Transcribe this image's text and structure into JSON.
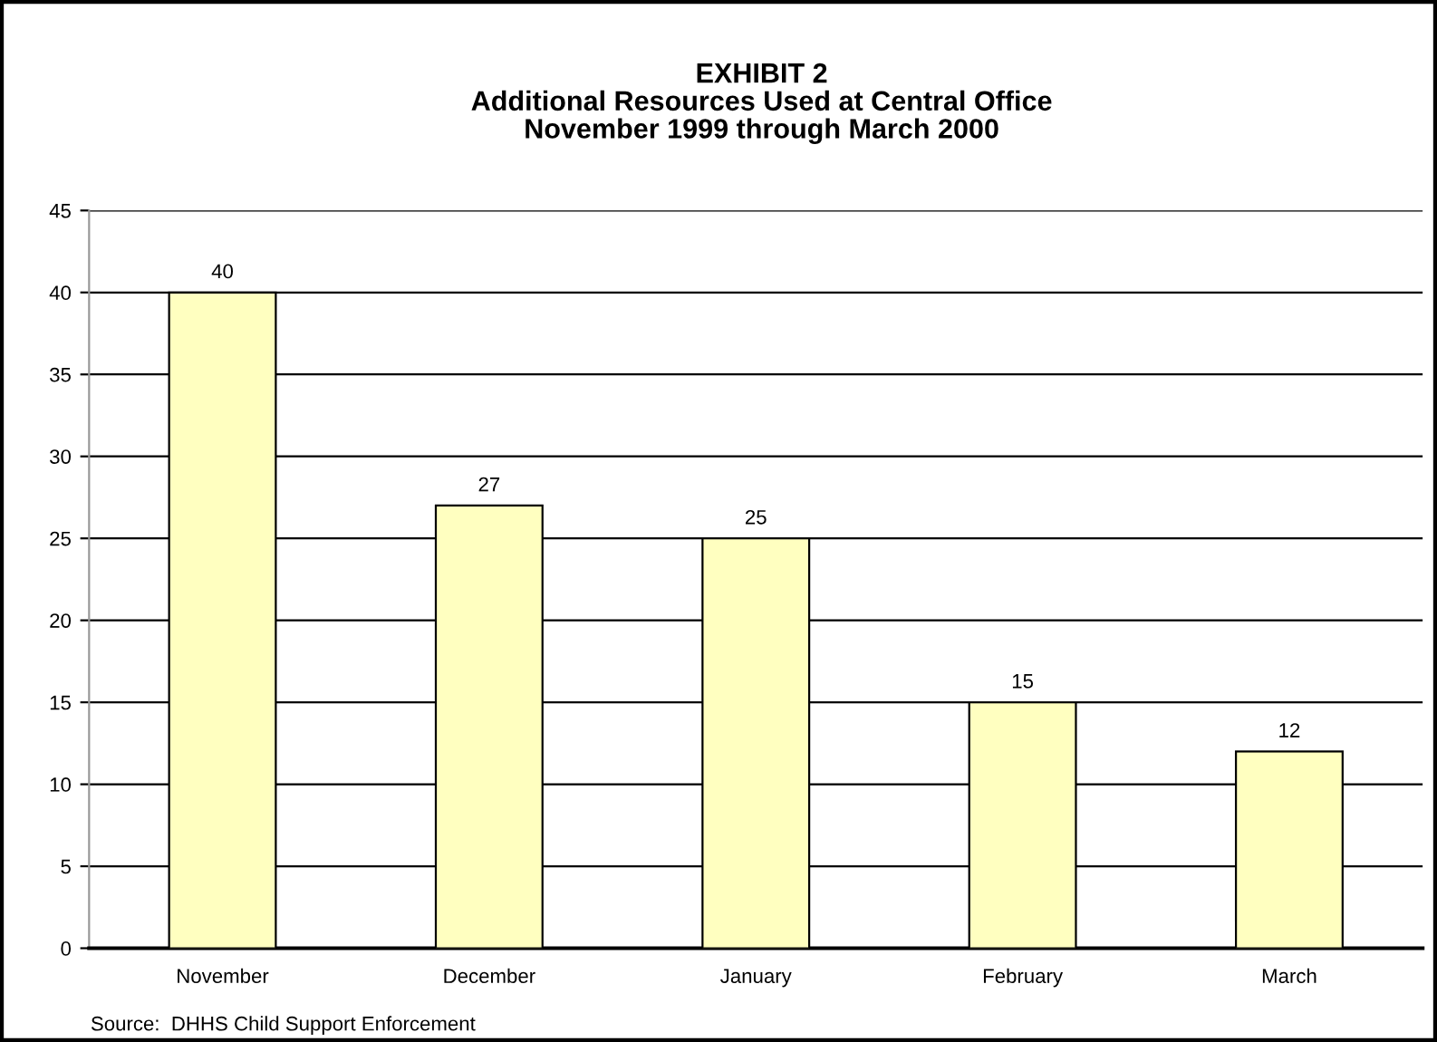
{
  "chart_data": {
    "type": "bar",
    "title": "EXHIBIT 2\nAdditional Resources Used at Central Office\nNovember 1999 through March 2000",
    "categories": [
      "November",
      "December",
      "January",
      "February",
      "March"
    ],
    "values": [
      40,
      27,
      25,
      15,
      12
    ],
    "color": "#ffffc0",
    "ylim": [
      0,
      45
    ],
    "yticks": [
      0,
      5,
      10,
      15,
      20,
      25,
      30,
      35,
      40,
      45
    ],
    "grid": "y",
    "data_labels": true,
    "legend": false,
    "annotations": [
      "Source:  DHHS Child Support Enforcement"
    ]
  }
}
